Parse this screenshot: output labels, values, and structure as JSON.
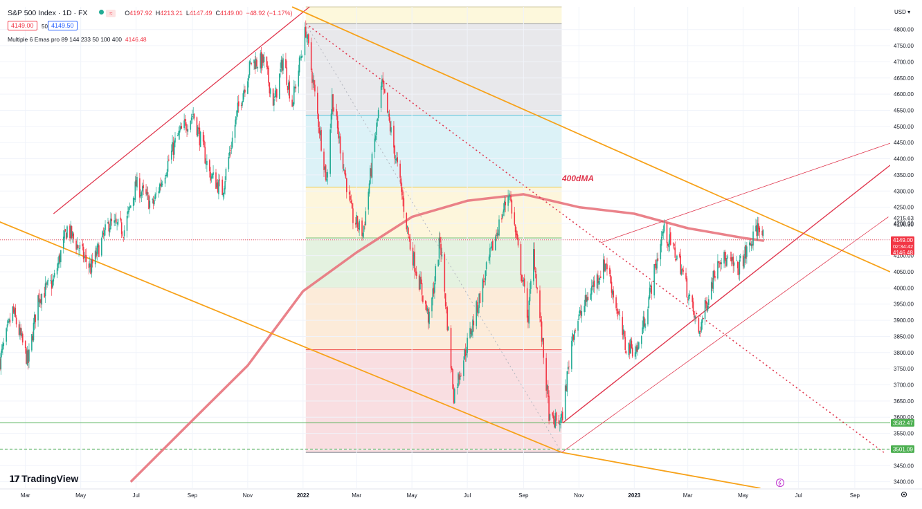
{
  "header": {
    "symbol": "S&P 500 Index · 1D · FX",
    "open_label": "O",
    "open": "4197.92",
    "high_label": "H",
    "high": "4213.21",
    "low_label": "L",
    "low": "4147.49",
    "close_label": "C",
    "close": "4149.00",
    "change": "−48.92 (−1.17%)",
    "sell_price": "4149.00",
    "spread": "50",
    "buy_price": "4149.50",
    "indicator_name": "Multiple 6 Emas pro 89 144 233 50 100 400",
    "indicator_value": "4146.48"
  },
  "currency": "USD",
  "branding": "TradingView",
  "colors": {
    "up": "#22ab94",
    "down": "#f23645",
    "ema": "#e8747d",
    "orange_channel": "#f7a21a",
    "red_trend": "#e0384f",
    "support": "#4caf50"
  },
  "chart_data": {
    "type": "candlestick",
    "ylim": [
      3380,
      4870
    ],
    "xlim": [
      "2021-02-01",
      "2023-10-10"
    ],
    "y_ticks": [
      3400,
      3450,
      3500,
      3550,
      3600,
      3650,
      3700,
      3750,
      3800,
      3850,
      3900,
      3950,
      4000,
      4050,
      4100,
      4150,
      4200,
      4250,
      4300,
      4350,
      4400,
      4450,
      4500,
      4550,
      4600,
      4650,
      4700,
      4750,
      4800
    ],
    "x_ticks": [
      {
        "label": "Mar",
        "date": "2021-03-01",
        "bold": false
      },
      {
        "label": "May",
        "date": "2021-05-01",
        "bold": false
      },
      {
        "label": "Jul",
        "date": "2021-07-01",
        "bold": false
      },
      {
        "label": "Sep",
        "date": "2021-09-01",
        "bold": false
      },
      {
        "label": "Nov",
        "date": "2021-11-01",
        "bold": false
      },
      {
        "label": "2022",
        "date": "2022-01-01",
        "bold": true
      },
      {
        "label": "Mar",
        "date": "2022-03-01",
        "bold": false
      },
      {
        "label": "May",
        "date": "2022-05-01",
        "bold": false
      },
      {
        "label": "Jul",
        "date": "2022-07-01",
        "bold": false
      },
      {
        "label": "Sep",
        "date": "2022-09-01",
        "bold": false
      },
      {
        "label": "Nov",
        "date": "2022-11-01",
        "bold": false
      },
      {
        "label": "2023",
        "date": "2023-01-01",
        "bold": true
      },
      {
        "label": "Mar",
        "date": "2023-03-01",
        "bold": false
      },
      {
        "label": "May",
        "date": "2023-05-01",
        "bold": false
      },
      {
        "label": "Jul",
        "date": "2023-07-01",
        "bold": false
      },
      {
        "label": "Sep",
        "date": "2023-09-01",
        "bold": false
      }
    ],
    "price_path": [
      [
        "2021-02-01",
        3775
      ],
      [
        "2021-02-15",
        3930
      ],
      [
        "2021-03-04",
        3770
      ],
      [
        "2021-03-15",
        3970
      ],
      [
        "2021-04-01",
        4020
      ],
      [
        "2021-04-16",
        4185
      ],
      [
        "2021-05-12",
        4060
      ],
      [
        "2021-06-01",
        4200
      ],
      [
        "2021-06-18",
        4180
      ],
      [
        "2021-07-01",
        4320
      ],
      [
        "2021-07-19",
        4255
      ],
      [
        "2021-08-15",
        4465
      ],
      [
        "2021-09-02",
        4540
      ],
      [
        "2021-09-20",
        4355
      ],
      [
        "2021-10-04",
        4300
      ],
      [
        "2021-10-21",
        4550
      ],
      [
        "2021-11-05",
        4700
      ],
      [
        "2021-11-19",
        4700
      ],
      [
        "2021-11-30",
        4570
      ],
      [
        "2021-12-10",
        4710
      ],
      [
        "2021-12-20",
        4570
      ],
      [
        "2022-01-04",
        4800
      ],
      [
        "2022-01-27",
        4330
      ],
      [
        "2022-02-02",
        4590
      ],
      [
        "2022-02-24",
        4220
      ],
      [
        "2022-03-08",
        4170
      ],
      [
        "2022-03-29",
        4630
      ],
      [
        "2022-04-14",
        4390
      ],
      [
        "2022-04-29",
        4130
      ],
      [
        "2022-05-20",
        3900
      ],
      [
        "2022-06-01",
        4150
      ],
      [
        "2022-06-16",
        3670
      ],
      [
        "2022-07-08",
        3900
      ],
      [
        "2022-07-29",
        4130
      ],
      [
        "2022-08-16",
        4300
      ],
      [
        "2022-09-06",
        3910
      ],
      [
        "2022-09-12",
        4110
      ],
      [
        "2022-09-30",
        3585
      ],
      [
        "2022-10-13",
        3590
      ],
      [
        "2022-10-25",
        3860
      ],
      [
        "2022-11-15",
        4000
      ],
      [
        "2022-12-01",
        4080
      ],
      [
        "2022-12-22",
        3820
      ],
      [
        "2023-01-05",
        3810
      ],
      [
        "2023-02-02",
        4180
      ],
      [
        "2023-02-20",
        4080
      ],
      [
        "2023-03-13",
        3860
      ],
      [
        "2023-04-04",
        4100
      ],
      [
        "2023-04-25",
        4060
      ],
      [
        "2023-05-10",
        4140
      ],
      [
        "2023-05-19",
        4200
      ],
      [
        "2023-05-24",
        4149
      ]
    ],
    "ema400": [
      [
        "2021-06-25",
        3400
      ],
      [
        "2021-09-01",
        3590
      ],
      [
        "2021-11-01",
        3760
      ],
      [
        "2022-01-01",
        3990
      ],
      [
        "2022-03-01",
        4110
      ],
      [
        "2022-05-01",
        4220
      ],
      [
        "2022-07-01",
        4270
      ],
      [
        "2022-09-01",
        4290
      ],
      [
        "2022-11-01",
        4250
      ],
      [
        "2023-01-01",
        4230
      ],
      [
        "2023-03-01",
        4185
      ],
      [
        "2023-05-01",
        4155
      ],
      [
        "2023-05-24",
        4146
      ]
    ],
    "ema_label": "400dMA",
    "fib_box": {
      "start": "2022-01-04",
      "end": "2022-10-13",
      "levels": [
        4870,
        4818,
        4535,
        4312,
        4155,
        4000,
        3809,
        3491
      ],
      "fills": [
        "#fdf7d6",
        "#e4e4e7",
        "#d6f0f6",
        "#fdf5d6",
        "#dff0db",
        "#fbe8d2",
        "#f8d8dc"
      ],
      "level_colors": [
        "#cfc9a0",
        "#9598a1",
        "#5ac0d6",
        "#e9c84d",
        "#7ec27a",
        "#f1a05a",
        "#ef5350",
        "#787b86"
      ]
    },
    "horizontal_levels": [
      {
        "value": 3582.47,
        "label": "3582.47",
        "style": "solid",
        "color": "#4caf50"
      },
      {
        "value": 3501.09,
        "label": "3501.09",
        "style": "dashed",
        "color": "#4caf50"
      }
    ],
    "price_labels": [
      {
        "value": 4215.63,
        "label": "4215.63"
      },
      {
        "value": 4196.3,
        "label": "4196.30"
      }
    ],
    "last_price": {
      "value": 4149.0,
      "label": "4149.00",
      "countdown": "02:34:42"
    },
    "ema_price_label": {
      "value": 4146.48,
      "label": "4146.48"
    },
    "trendlines": [
      {
        "from": [
          "2021-04-01",
          4230
        ],
        "to": [
          "2022-01-08",
          4870
        ],
        "color": "#e0384f",
        "width": 1.3,
        "dash": false
      },
      {
        "from": [
          "2021-01-27",
          4210
        ],
        "to": [
          "2022-10-13",
          3491
        ],
        "color": "#f7a21a",
        "width": 1.8,
        "dash": false
      },
      {
        "from": [
          "2022-10-13",
          3491
        ],
        "to": [
          "2023-05-20",
          3380
        ],
        "color": "#f7a21a",
        "width": 1.8,
        "dash": false
      },
      {
        "from": [
          "2021-12-20",
          4870
        ],
        "to": [
          "2023-10-10",
          4050
        ],
        "color": "#f7a21a",
        "width": 1.8,
        "dash": false
      },
      {
        "from": [
          "2022-01-04",
          4818
        ],
        "to": [
          "2023-10-03",
          3491
        ],
        "color": "#e0384f",
        "width": 1.6,
        "dash": true
      },
      {
        "from": [
          "2022-01-04",
          4818
        ],
        "to": [
          "2022-10-13",
          3491
        ],
        "color": "#b2b5be",
        "width": 1,
        "dash": true
      },
      {
        "from": [
          "2022-10-14",
          3582
        ],
        "to": [
          "2023-10-10",
          4380
        ],
        "color": "#e0384f",
        "width": 1.4,
        "dash": false
      },
      {
        "from": [
          "2022-10-13",
          3491
        ],
        "to": [
          "2023-10-08",
          4220
        ],
        "color": "#e0384f",
        "width": 0.8,
        "dash": false
      },
      {
        "from": [
          "2022-11-25",
          4140
        ],
        "to": [
          "2023-10-10",
          4448
        ],
        "color": "#e0384f",
        "width": 0.8,
        "dash": false
      }
    ],
    "title": "",
    "xlabel": "",
    "ylabel": ""
  }
}
